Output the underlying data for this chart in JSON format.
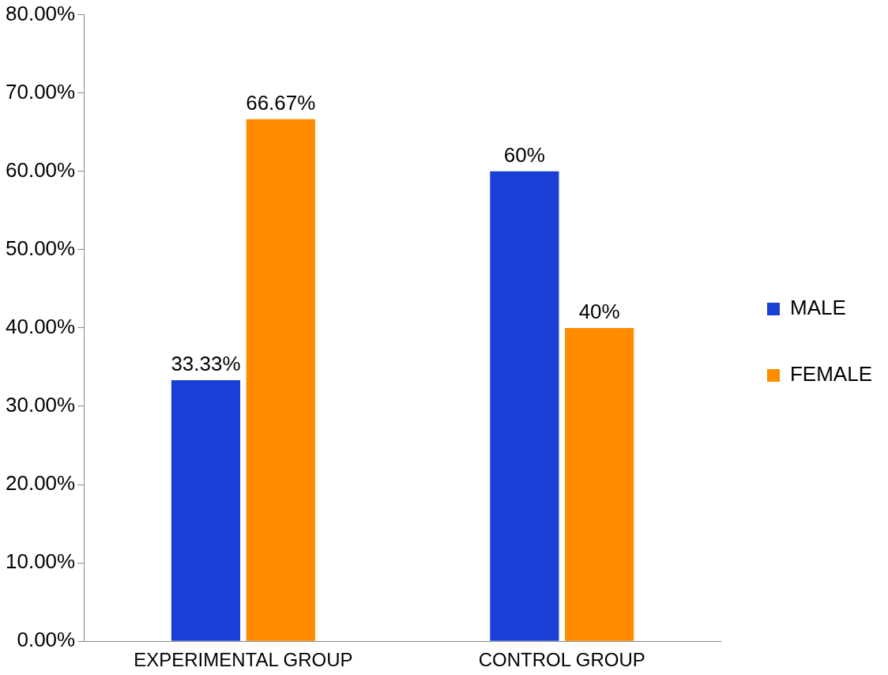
{
  "chart_data": {
    "type": "bar",
    "categories": [
      "EXPERIMENTAL GROUP",
      "CONTROL GROUP"
    ],
    "series": [
      {
        "name": "MALE",
        "color": "#1a3fd6",
        "values": [
          33.33,
          60
        ],
        "value_labels": [
          "33.33%",
          "60%"
        ]
      },
      {
        "name": "FEMALE",
        "color": "#ff8c00",
        "values": [
          66.67,
          40
        ],
        "value_labels": [
          "66.67%",
          "40%"
        ]
      }
    ],
    "ylim": [
      0,
      80
    ],
    "yticks": [
      {
        "value": 0,
        "label": "0.00%"
      },
      {
        "value": 10,
        "label": "10.00%"
      },
      {
        "value": 20,
        "label": "20.00%"
      },
      {
        "value": 30,
        "label": "30.00%"
      },
      {
        "value": 40,
        "label": "40.00%"
      },
      {
        "value": 50,
        "label": "50.00%"
      },
      {
        "value": 60,
        "label": "60.00%"
      },
      {
        "value": 70,
        "label": "70.00%"
      },
      {
        "value": 80,
        "label": "80.00%"
      }
    ],
    "grid": false,
    "legend": "right"
  }
}
